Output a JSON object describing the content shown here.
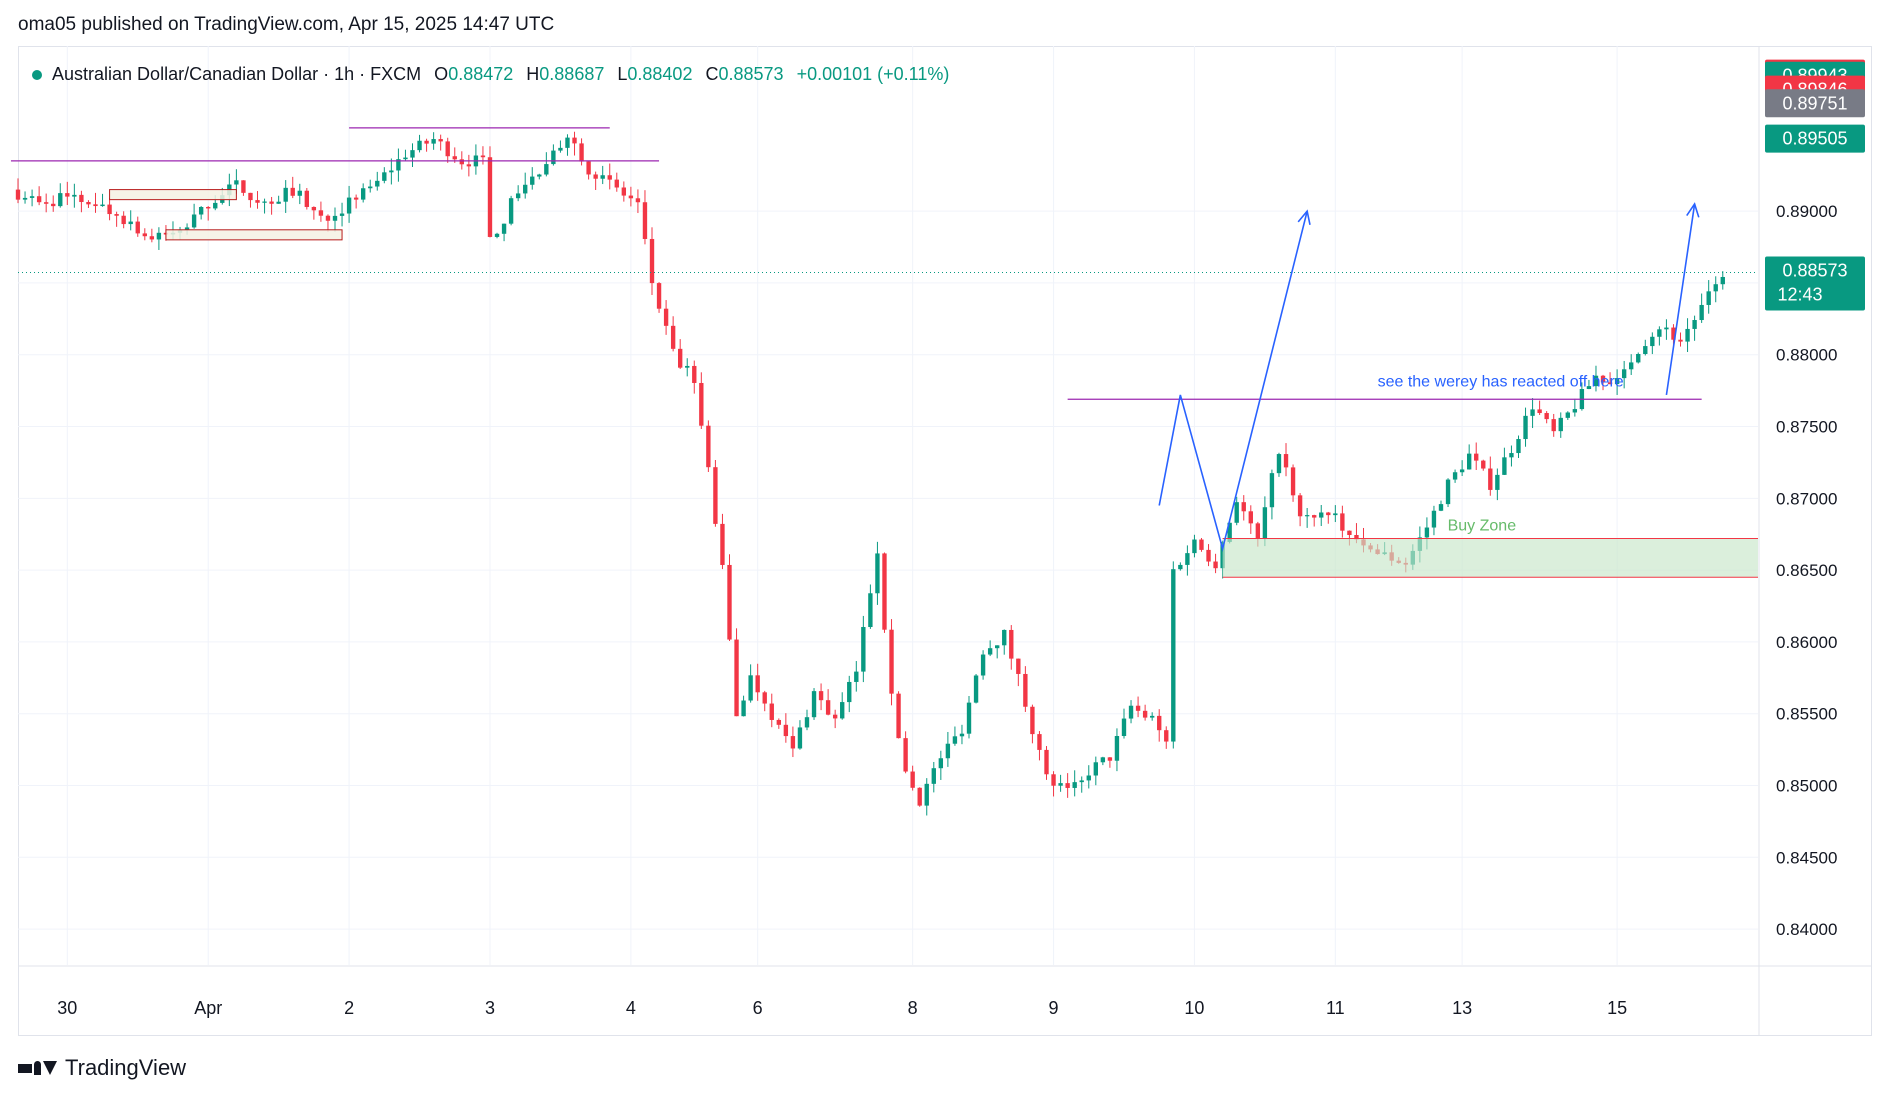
{
  "header": {
    "published": "oma05 published on TradingView.com, Apr 15, 2025 14:47 UTC"
  },
  "legend": {
    "symbol": "Australian Dollar/Canadian Dollar · 1h · FXCM",
    "o_label": "O",
    "o_value": "0.88472",
    "h_label": "H",
    "h_value": "0.88687",
    "l_label": "L",
    "l_value": "0.88402",
    "c_label": "C",
    "c_value": "0.88573",
    "change": "+0.00101 (+0.11%)"
  },
  "footer": {
    "brand": "TradingView"
  },
  "colors": {
    "up": "#089981",
    "down": "#f23645",
    "purple": "#9c27b0",
    "blue": "#2962ff",
    "zone_fill": "#c8e6c9",
    "zone_edge": "#f23645",
    "grid": "#f0f3fa",
    "text": "#131722",
    "gray_tag": "#787b86"
  },
  "chart_data": {
    "type": "candlestick",
    "timeframe": "1h",
    "ylim": [
      0.8375,
      0.9015
    ],
    "y_ticks": [
      "0.89000",
      "0.88500",
      "0.88000",
      "0.87500",
      "0.87000",
      "0.86500",
      "0.86000",
      "0.85500",
      "0.85000",
      "0.84500",
      "0.84000"
    ],
    "x_ticks": [
      {
        "label": "30",
        "t": 4
      },
      {
        "label": "Apr",
        "t": 14
      },
      {
        "label": "2",
        "t": 24
      },
      {
        "label": "3",
        "t": 34
      },
      {
        "label": "4",
        "t": 44
      },
      {
        "label": "6",
        "t": 53
      },
      {
        "label": "8",
        "t": 64
      },
      {
        "label": "9",
        "t": 74
      },
      {
        "label": "10",
        "t": 84
      },
      {
        "label": "11",
        "t": 94
      },
      {
        "label": "13",
        "t": 103
      },
      {
        "label": "15",
        "t": 114
      }
    ],
    "t_range": [
      0.5,
      124
    ],
    "price_path": [
      [
        0,
        0.8915
      ],
      [
        2,
        0.8905
      ],
      [
        4,
        0.891
      ],
      [
        6,
        0.8905
      ],
      [
        8,
        0.8895
      ],
      [
        10,
        0.888
      ],
      [
        12,
        0.8885
      ],
      [
        14,
        0.8905
      ],
      [
        16,
        0.8918
      ],
      [
        18,
        0.8905
      ],
      [
        20,
        0.8915
      ],
      [
        22,
        0.8895
      ],
      [
        24,
        0.8905
      ],
      [
        26,
        0.892
      ],
      [
        28,
        0.894
      ],
      [
        30,
        0.895
      ],
      [
        32,
        0.8935
      ],
      [
        33.5,
        0.8935
      ],
      [
        34,
        0.888
      ],
      [
        35,
        0.8895
      ],
      [
        36,
        0.8915
      ],
      [
        38,
        0.893
      ],
      [
        39.5,
        0.8955
      ],
      [
        41,
        0.893
      ],
      [
        43,
        0.8915
      ],
      [
        44.5,
        0.8905
      ],
      [
        45.5,
        0.885
      ],
      [
        47,
        0.88
      ],
      [
        48.5,
        0.878
      ],
      [
        49.5,
        0.872
      ],
      [
        50.5,
        0.865
      ],
      [
        51.5,
        0.855
      ],
      [
        52.5,
        0.8575
      ],
      [
        53.5,
        0.856
      ],
      [
        54.5,
        0.854
      ],
      [
        55.5,
        0.8525
      ],
      [
        57,
        0.8565
      ],
      [
        58.5,
        0.8545
      ],
      [
        60,
        0.858
      ],
      [
        61.5,
        0.8665
      ],
      [
        62.5,
        0.856
      ],
      [
        63.5,
        0.851
      ],
      [
        64.5,
        0.849
      ],
      [
        66,
        0.852
      ],
      [
        67.5,
        0.854
      ],
      [
        69,
        0.8595
      ],
      [
        70.5,
        0.8605
      ],
      [
        71.5,
        0.8575
      ],
      [
        72.5,
        0.854
      ],
      [
        73.5,
        0.8505
      ],
      [
        75,
        0.8495
      ],
      [
        76.5,
        0.851
      ],
      [
        78,
        0.852
      ],
      [
        79.5,
        0.8555
      ],
      [
        81,
        0.8545
      ],
      [
        82,
        0.853
      ],
      [
        82.5,
        0.865
      ],
      [
        84,
        0.867
      ],
      [
        85.5,
        0.8655
      ],
      [
        87,
        0.87
      ],
      [
        88.5,
        0.867
      ],
      [
        90,
        0.8735
      ],
      [
        91.5,
        0.8685
      ],
      [
        93,
        0.869
      ],
      [
        94.5,
        0.868
      ],
      [
        96,
        0.8665
      ],
      [
        97.5,
        0.866
      ],
      [
        99,
        0.8655
      ],
      [
        100.5,
        0.868
      ],
      [
        102,
        0.871
      ],
      [
        103.5,
        0.873
      ],
      [
        105,
        0.871
      ],
      [
        106.5,
        0.8735
      ],
      [
        108,
        0.8765
      ],
      [
        109.5,
        0.8745
      ],
      [
        111,
        0.8765
      ],
      [
        112.5,
        0.8785
      ],
      [
        114,
        0.878
      ],
      [
        115.5,
        0.8805
      ],
      [
        117,
        0.882
      ],
      [
        118.5,
        0.881
      ],
      [
        119.5,
        0.8825
      ],
      [
        120.5,
        0.884
      ],
      [
        121.5,
        0.8857
      ]
    ],
    "horizontal_lines": [
      {
        "y": 0.8935,
        "t0": 0,
        "t1": 46,
        "color": "purple"
      },
      {
        "y": 0.8958,
        "t0": 24,
        "t1": 42.5,
        "color": "purple"
      },
      {
        "y": 0.8769,
        "t0": 75,
        "t1": 120,
        "color": "purple"
      }
    ],
    "boxes": [
      {
        "t0": 7,
        "t1": 16,
        "y0": 0.8908,
        "y1": 0.8915
      },
      {
        "t0": 11,
        "t1": 23.5,
        "y0": 0.888,
        "y1": 0.8887
      }
    ],
    "buy_zone": {
      "label": "Buy Zone",
      "t0": 86,
      "t1": 124,
      "y0": 0.8645,
      "y1": 0.8672
    },
    "annotation": {
      "text": "see the werey has reacted off here",
      "t": 97,
      "y": 0.8778
    },
    "arrow_paths": [
      [
        [
          81.5,
          0.8695
        ],
        [
          83,
          0.8772
        ],
        [
          86,
          0.8665
        ],
        [
          92,
          0.89
        ]
      ],
      [
        [
          117.5,
          0.8772
        ],
        [
          119.5,
          0.8905
        ]
      ]
    ],
    "current_price_line": 0.88573,
    "price_tags": [
      {
        "value": "0.89958",
        "color": "#f23645"
      },
      {
        "value": "0.89943",
        "color": "#089981"
      },
      {
        "value": "0.89846",
        "color": "#f23645"
      },
      {
        "value": "0.89751",
        "color": "#787b86"
      },
      {
        "value": "0.89505",
        "color": "#089981"
      },
      {
        "value": "0.88573",
        "sub": "12:43",
        "color": "#089981"
      }
    ]
  }
}
